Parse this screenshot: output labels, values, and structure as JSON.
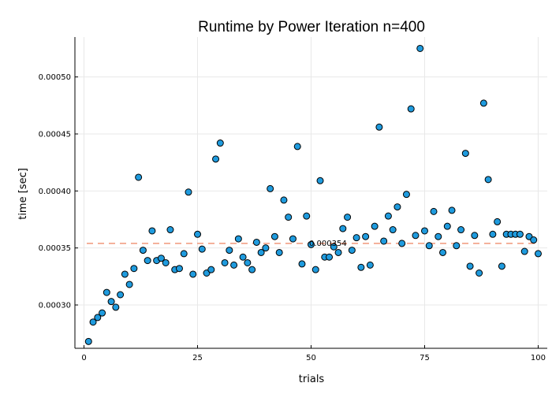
{
  "chart_data": {
    "type": "scatter",
    "title": "Runtime by Power Iteration  n=400",
    "xlabel": "trials",
    "ylabel": "time [sec]",
    "xlim": [
      -2,
      102
    ],
    "ylim": [
      0.000262,
      0.000535
    ],
    "xticks": [
      0,
      25,
      50,
      75,
      100
    ],
    "xtick_labels": [
      "0",
      "25",
      "50",
      "75",
      "100"
    ],
    "yticks": [
      0.0003,
      0.00035,
      0.0004,
      0.00045,
      0.0005
    ],
    "ytick_labels": [
      "0.00030",
      "0.00035",
      "0.00040",
      "0.00045",
      "0.00050"
    ],
    "grid": true,
    "colors": {
      "points": "#1f9bde",
      "mean_line": "#f0987a"
    },
    "reference_line": {
      "value": 0.000354,
      "label": "0.000354",
      "style": "dashed"
    },
    "series": [
      {
        "x": [
          1,
          2,
          3,
          4,
          5,
          6,
          7,
          8,
          9,
          10,
          11,
          12,
          13,
          14,
          15,
          16,
          17,
          18,
          19,
          20,
          21,
          22,
          23,
          24,
          25,
          26,
          27,
          28,
          29,
          30,
          31,
          32,
          33,
          34,
          35,
          36,
          37,
          38,
          39,
          40,
          41,
          42,
          43,
          44,
          45,
          46,
          47,
          48,
          49,
          50,
          51,
          52,
          53,
          54,
          55,
          56,
          57,
          58,
          59,
          60,
          61,
          62,
          63,
          64,
          65,
          66,
          67,
          68,
          69,
          70,
          71,
          72,
          73,
          74,
          75,
          76,
          77,
          78,
          79,
          80,
          81,
          82,
          83,
          84,
          85,
          86,
          87,
          88,
          89,
          90,
          91,
          92,
          93,
          94,
          95,
          96,
          97,
          98,
          99,
          100
        ],
        "y": [
          0.000268,
          0.000285,
          0.000289,
          0.000293,
          0.000311,
          0.000303,
          0.000298,
          0.000309,
          0.000327,
          0.000318,
          0.000332,
          0.000412,
          0.000348,
          0.000339,
          0.000365,
          0.000339,
          0.000341,
          0.000337,
          0.000366,
          0.000331,
          0.000332,
          0.000345,
          0.000399,
          0.000327,
          0.000362,
          0.000349,
          0.000328,
          0.000331,
          0.000428,
          0.000442,
          0.000337,
          0.000348,
          0.000335,
          0.000358,
          0.000342,
          0.000337,
          0.000331,
          0.000355,
          0.000346,
          0.00035,
          0.000402,
          0.00036,
          0.000346,
          0.000392,
          0.000377,
          0.000358,
          0.000439,
          0.000336,
          0.000378,
          0.000353,
          0.000331,
          0.000409,
          0.000342,
          0.000342,
          0.000351,
          0.000346,
          0.000367,
          0.000377,
          0.000348,
          0.000359,
          0.000333,
          0.00036,
          0.000335,
          0.000369,
          0.000456,
          0.000356,
          0.000378,
          0.000366,
          0.000386,
          0.000354,
          0.000397,
          0.000472,
          0.000361,
          0.000525,
          0.000365,
          0.000352,
          0.000382,
          0.00036,
          0.000346,
          0.000369,
          0.000383,
          0.000352,
          0.000366,
          0.000433,
          0.000334,
          0.000361,
          0.000328,
          0.000477,
          0.00041,
          0.000362,
          0.000373,
          0.000334,
          0.000362,
          0.000362,
          0.000362,
          0.000362,
          0.000347,
          0.00036,
          0.000357,
          0.000345
        ]
      }
    ]
  }
}
